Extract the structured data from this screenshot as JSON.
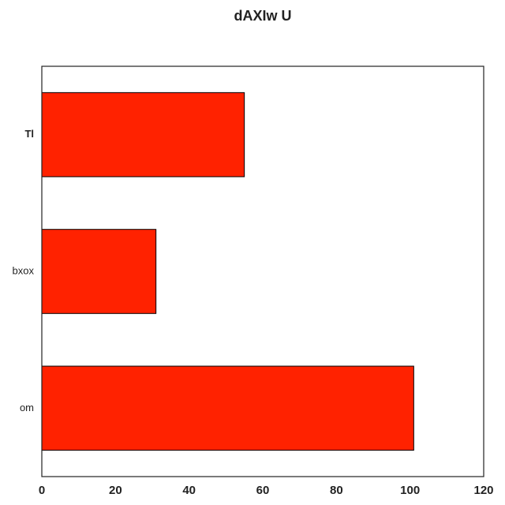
{
  "chart_data": {
    "type": "bar",
    "orientation": "horizontal",
    "title": "dAXIw U",
    "xlabel": "",
    "ylabel": "",
    "categories": [
      "om",
      "bxox",
      "Tl"
    ],
    "values": [
      101,
      31,
      55
    ],
    "xlim": [
      0,
      120
    ],
    "x_ticks": [
      0,
      20,
      40,
      60,
      80,
      100,
      120
    ],
    "bold_categories": [
      "Tl"
    ],
    "grid": false,
    "legend": "none",
    "bar_color": "#ff2200",
    "bar_edge_color": "#000000"
  }
}
